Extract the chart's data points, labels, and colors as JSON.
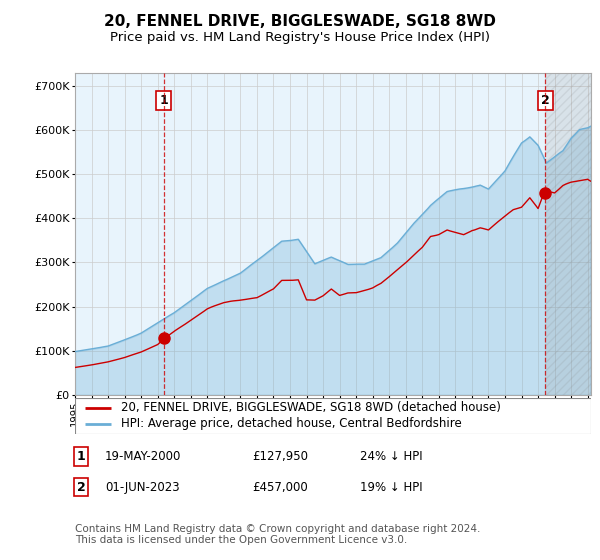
{
  "title": "20, FENNEL DRIVE, BIGGLESWADE, SG18 8WD",
  "subtitle": "Price paid vs. HM Land Registry's House Price Index (HPI)",
  "ylabel_ticks": [
    "£0",
    "£100K",
    "£200K",
    "£300K",
    "£400K",
    "£500K",
    "£600K",
    "£700K"
  ],
  "ytick_values": [
    0,
    100000,
    200000,
    300000,
    400000,
    500000,
    600000,
    700000
  ],
  "ylim": [
    0,
    730000
  ],
  "xlim_start": 1995.0,
  "xlim_end": 2026.2,
  "sale1": {
    "date": 2000.38,
    "price": 127950,
    "label": "1"
  },
  "sale2": {
    "date": 2023.42,
    "price": 457000,
    "label": "2"
  },
  "legend_entries": [
    "20, FENNEL DRIVE, BIGGLESWADE, SG18 8WD (detached house)",
    "HPI: Average price, detached house, Central Bedfordshire"
  ],
  "table_rows": [
    [
      "1",
      "19-MAY-2000",
      "£127,950",
      "24% ↓ HPI"
    ],
    [
      "2",
      "01-JUN-2023",
      "£457,000",
      "19% ↓ HPI"
    ]
  ],
  "footer": "Contains HM Land Registry data © Crown copyright and database right 2024.\nThis data is licensed under the Open Government Licence v3.0.",
  "hpi_color": "#6aaed6",
  "hpi_fill_color": "#d6e8f5",
  "price_color": "#cc0000",
  "sale_marker_color": "#cc0000",
  "dashed_line_color": "#cc0000",
  "title_fontsize": 11,
  "subtitle_fontsize": 9.5,
  "tick_fontsize": 8,
  "legend_fontsize": 8.5,
  "table_fontsize": 8.5,
  "footer_fontsize": 7.5,
  "background_color": "#ffffff",
  "grid_color": "#cccccc",
  "plot_bg_color": "#e8f4fc"
}
